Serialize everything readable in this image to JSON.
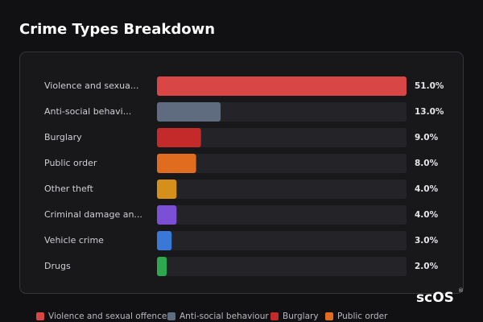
{
  "chart_data": {
    "type": "bar",
    "orientation": "horizontal",
    "title": "Crime Types Breakdown",
    "categories": [
      "Violence and sexua...",
      "Anti-social behavi...",
      "Burglary",
      "Public order",
      "Other theft",
      "Criminal damage an...",
      "Vehicle crime",
      "Drugs"
    ],
    "values": [
      51,
      13,
      9,
      8,
      4,
      4,
      3,
      2
    ],
    "value_labels": [
      "51.0%",
      "13.0%",
      "9.0%",
      "8.0%",
      "4.0%",
      "4.0%",
      "3.0%",
      "2.0%"
    ],
    "colors": [
      "#d94646",
      "#5f6b7e",
      "#c42a2a",
      "#e06c1f",
      "#d4901a",
      "#7b4fd6",
      "#3a78d8",
      "#2ea84f"
    ],
    "legend": [
      "Violence and sexual offences",
      "Anti-social behaviour",
      "Burglary",
      "Public order"
    ],
    "watermark": "scOS",
    "watermark_mark": "®"
  }
}
